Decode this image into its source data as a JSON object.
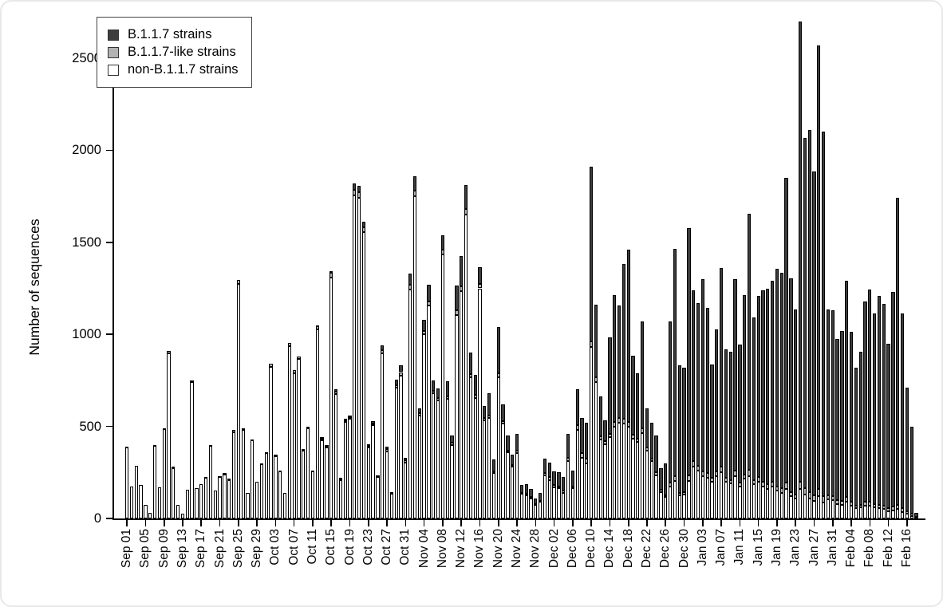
{
  "figure": {
    "y_axis_label": "Number of sequences"
  },
  "legend": {
    "items": [
      {
        "label": "B.1.1.7 strains",
        "color": "#3d3d3d"
      },
      {
        "label": "B.1.1.7-like strains",
        "color": "#b3b3b3"
      },
      {
        "label": "non-B.1.1.7 strains",
        "color": "#ffffff"
      }
    ]
  },
  "chart_data": {
    "type": "bar",
    "stacked": true,
    "title": "",
    "xlabel": "",
    "ylabel": "Number of sequences",
    "ylim": [
      0,
      2750
    ],
    "y_ticks": [
      0,
      500,
      1000,
      1500,
      2000,
      2500
    ],
    "grid": false,
    "legend_position": "top-left",
    "months": [
      {
        "name": "Sep",
        "days": 30
      },
      {
        "name": "Oct",
        "days": 31
      },
      {
        "name": "Nov",
        "days": 30
      },
      {
        "name": "Dec",
        "days": 31
      },
      {
        "name": "Jan",
        "days": 31
      },
      {
        "name": "Feb",
        "days": 18
      }
    ],
    "x_tick_every": 4,
    "x_tick_labels": [
      "Sep 01",
      "Sep 05",
      "Sep 09",
      "Sep 13",
      "Sep 17",
      "Sep 21",
      "Sep 25",
      "Sep 29",
      "Oct 03",
      "Oct 07",
      "Oct 11",
      "Oct 15",
      "Oct 19",
      "Oct 23",
      "Oct 27",
      "Oct 31",
      "Nov 04",
      "Nov 08",
      "Nov 12",
      "Nov 16",
      "Nov 20",
      "Nov 24",
      "Nov 28",
      "Dec 02",
      "Dec 06",
      "Dec 10",
      "Dec 14",
      "Dec 18",
      "Dec 22",
      "Dec 26",
      "Dec 30",
      "Jan 03",
      "Jan 07",
      "Jan 11",
      "Jan 15",
      "Jan 19",
      "Jan 23",
      "Jan 27",
      "Jan 31",
      "Feb 04",
      "Feb 08",
      "Feb 12",
      "Feb 16"
    ],
    "stack_order_bottom_to_top": [
      "non-B.1.1.7 strains",
      "B.1.1.7-like strains",
      "B.1.1.7 strains"
    ],
    "series": [
      {
        "name": "non-B.1.1.7 strains",
        "color": "#ffffff",
        "values": [
          385,
          175,
          285,
          180,
          75,
          30,
          395,
          170,
          485,
          895,
          275,
          75,
          25,
          155,
          740,
          165,
          185,
          220,
          395,
          150,
          225,
          240,
          210,
          470,
          1275,
          480,
          140,
          425,
          200,
          295,
          355,
          825,
          340,
          255,
          140,
          935,
          790,
          865,
          370,
          490,
          255,
          1025,
          425,
          385,
          1310,
          675,
          210,
          525,
          540,
          1755,
          1740,
          1555,
          385,
          505,
          225,
          895,
          365,
          135,
          710,
          775,
          305,
          1245,
          1750,
          560,
          1000,
          1155,
          680,
          640,
          1435,
          650,
          400,
          1105,
          1235,
          1650,
          765,
          655,
          1250,
          535,
          545,
          245,
          765,
          515,
          360,
          280,
          355,
          135,
          125,
          110,
          75,
          90,
          235,
          210,
          170,
          165,
          140,
          310,
          165,
          480,
          330,
          300,
          930,
          740,
          430,
          405,
          440,
          500,
          520,
          515,
          500,
          435,
          415,
          465,
          370,
          310,
          235,
          145,
          115,
          175,
          205,
          125,
          130,
          205,
          280,
          260,
          230,
          220,
          200,
          230,
          250,
          200,
          190,
          230,
          175,
          215,
          230,
          185,
          200,
          175,
          160,
          175,
          150,
          140,
          160,
          120,
          110,
          160,
          130,
          110,
          95,
          120,
          85,
          105,
          100,
          80,
          75,
          90,
          70,
          55,
          60,
          70,
          70,
          60,
          55,
          50,
          40,
          45,
          50,
          35,
          25,
          15,
          5
        ]
      },
      {
        "name": "B.1.1.7-like strains",
        "color": "#b3b3b3",
        "values": [
          5,
          0,
          0,
          0,
          0,
          0,
          5,
          0,
          5,
          15,
          5,
          0,
          0,
          0,
          10,
          0,
          0,
          5,
          5,
          0,
          5,
          5,
          5,
          10,
          20,
          10,
          0,
          5,
          0,
          5,
          5,
          15,
          5,
          5,
          0,
          20,
          15,
          15,
          5,
          10,
          5,
          20,
          10,
          10,
          25,
          15,
          5,
          10,
          10,
          30,
          30,
          25,
          10,
          10,
          5,
          20,
          10,
          5,
          15,
          20,
          10,
          25,
          30,
          10,
          20,
          25,
          15,
          15,
          25,
          15,
          10,
          25,
          25,
          30,
          20,
          15,
          25,
          10,
          15,
          10,
          25,
          15,
          10,
          10,
          15,
          5,
          10,
          5,
          5,
          5,
          10,
          15,
          10,
          10,
          10,
          20,
          10,
          25,
          25,
          25,
          30,
          25,
          15,
          15,
          20,
          25,
          25,
          25,
          25,
          20,
          20,
          25,
          15,
          15,
          15,
          10,
          10,
          20,
          25,
          15,
          15,
          30,
          30,
          25,
          25,
          25,
          20,
          25,
          30,
          20,
          20,
          30,
          20,
          25,
          35,
          25,
          25,
          25,
          25,
          25,
          25,
          25,
          35,
          25,
          20,
          40,
          35,
          35,
          30,
          40,
          35,
          20,
          20,
          20,
          20,
          25,
          20,
          15,
          15,
          20,
          20,
          20,
          20,
          20,
          15,
          20,
          25,
          20,
          15,
          10,
          2
        ]
      },
      {
        "name": "B.1.1.7 strains",
        "color": "#3d3d3d",
        "values": [
          0,
          0,
          0,
          0,
          0,
          0,
          0,
          0,
          0,
          0,
          0,
          0,
          0,
          0,
          0,
          0,
          0,
          0,
          0,
          0,
          0,
          0,
          0,
          0,
          0,
          0,
          0,
          0,
          0,
          0,
          0,
          0,
          0,
          0,
          0,
          0,
          0,
          0,
          0,
          0,
          0,
          5,
          5,
          5,
          10,
          10,
          5,
          5,
          10,
          35,
          35,
          30,
          10,
          15,
          5,
          25,
          15,
          5,
          30,
          35,
          15,
          60,
          80,
          30,
          60,
          90,
          55,
          50,
          80,
          80,
          40,
          135,
          165,
          130,
          115,
          110,
          90,
          65,
          120,
          65,
          250,
          90,
          80,
          55,
          90,
          40,
          50,
          45,
          30,
          45,
          80,
          80,
          75,
          75,
          75,
          130,
          85,
          195,
          190,
          195,
          950,
          395,
          220,
          115,
          525,
          690,
          610,
          840,
          935,
          430,
          355,
          580,
          215,
          195,
          200,
          120,
          175,
          875,
          1235,
          690,
          675,
          1340,
          930,
          885,
          1045,
          900,
          615,
          770,
          1080,
          700,
          695,
          1040,
          750,
          975,
          1390,
          880,
          985,
          1040,
          1065,
          1090,
          1180,
          1170,
          1655,
          1160,
          1005,
          2500,
          1900,
          1965,
          1760,
          2410,
          1980,
          1010,
          1010,
          875,
          925,
          1175,
          925,
          750,
          830,
          1090,
          1155,
          1035,
          1135,
          1095,
          895,
          1165,
          1665,
          1060,
          670,
          475,
          23
        ]
      }
    ]
  }
}
